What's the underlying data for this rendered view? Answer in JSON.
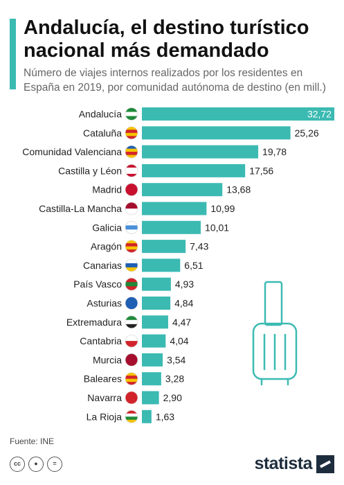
{
  "header": {
    "title": "Andalucía, el destino turístico nacional más demandado",
    "subtitle": "Número de viajes internos realizados por los residentes en España en 2019, por comunidad autónoma de destino (en mill.)"
  },
  "footer": {
    "source": "Fuente: INE",
    "logo": "statista",
    "license_icons": [
      "cc",
      "by",
      "nd"
    ]
  },
  "colors": {
    "bar": "#3bbab2",
    "accent": "#3bbab2"
  },
  "chart_data": {
    "type": "bar",
    "orientation": "horizontal",
    "title": "Andalucía, el destino turístico nacional más demandado",
    "subtitle": "Número de viajes internos realizados por los residentes en España en 2019, por comunidad autónoma de destino (en mill.)",
    "categories": [
      "Andalucía",
      "Cataluña",
      "Comunidad Valenciana",
      "Castilla y Léon",
      "Madrid",
      "Castilla-La Mancha",
      "Galicia",
      "Aragón",
      "Canarias",
      "País Vasco",
      "Asturias",
      "Extremadura",
      "Cantabria",
      "Murcia",
      "Baleares",
      "Navarra",
      "La Rioja"
    ],
    "values": [
      32.72,
      25.26,
      19.78,
      17.56,
      13.68,
      10.99,
      10.01,
      7.43,
      6.51,
      4.93,
      4.84,
      4.47,
      4.04,
      3.54,
      3.28,
      2.9,
      1.63
    ],
    "value_labels": [
      "32,72",
      "25,26",
      "19,78",
      "17,56",
      "13,68",
      "10,99",
      "10,01",
      "7,43",
      "6,51",
      "4,93",
      "4,84",
      "4,47",
      "4,04",
      "3,54",
      "3,28",
      "2,90",
      "1,63"
    ],
    "flag_icons": [
      "andalucia-flag-icon",
      "cataluna-flag-icon",
      "valencia-flag-icon",
      "castilla-leon-flag-icon",
      "madrid-flag-icon",
      "castilla-la-mancha-flag-icon",
      "galicia-flag-icon",
      "aragon-flag-icon",
      "canarias-flag-icon",
      "pais-vasco-flag-icon",
      "asturias-flag-icon",
      "extremadura-flag-icon",
      "cantabria-flag-icon",
      "murcia-flag-icon",
      "baleares-flag-icon",
      "navarra-flag-icon",
      "la-rioja-flag-icon"
    ],
    "xlim": [
      0,
      32.72
    ],
    "grid": false,
    "legend": "none"
  }
}
